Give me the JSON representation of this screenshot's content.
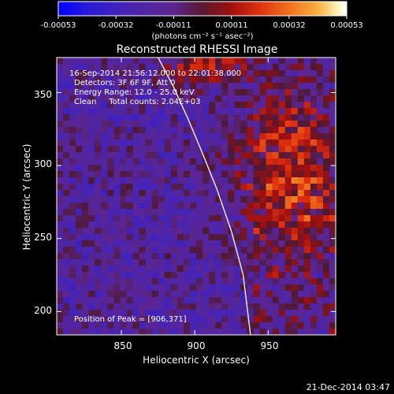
{
  "colorbar": {
    "tick_labels": [
      "-0.00053",
      "-0.00032",
      "-0.00011",
      "0.00011",
      "0.00032",
      "0.00053"
    ],
    "unit_label": "(photons cm⁻² s⁻¹ asec⁻²)",
    "colors": [
      "#0000ff",
      "#3a1fc8",
      "#5a2aa0",
      "#6d2d9a",
      "#7a2030",
      "#c01010",
      "#e04010",
      "#f07820",
      "#f8b030",
      "#fff0a0",
      "#ffffff"
    ]
  },
  "info": {
    "line1": "16-Sep-2014 21:56:12.000 to 22:01:38.000",
    "line2": "Detectors: 3F 6F 9F, Att 0",
    "line3": "Energy Range: 12.0 - 25.0 keV",
    "line4": "Clean     Total counts: 2.04E+03",
    "peak": "Position of Peak = [906,371]"
  },
  "timestamp": "21-Dec-2014 03:47",
  "chart_data": {
    "type": "heatmap",
    "title": "Reconstructed RHESSI Image",
    "xlabel": "Heliocentric X (arcsec)",
    "ylabel": "Heliocentric Y (arcsec)",
    "xlim": [
      806,
      996
    ],
    "ylim": [
      184,
      374
    ],
    "xticks": [
      850,
      900,
      950
    ],
    "yticks": [
      200,
      250,
      300,
      350
    ],
    "peak": [
      906,
      371
    ],
    "color_range": [
      -0.00053,
      0.00053
    ],
    "limb_curve": {
      "x": [
        875,
        885,
        895,
        905,
        915,
        925,
        933,
        938
      ],
      "y": [
        374,
        355,
        333,
        309,
        284,
        255,
        225,
        184
      ]
    }
  }
}
